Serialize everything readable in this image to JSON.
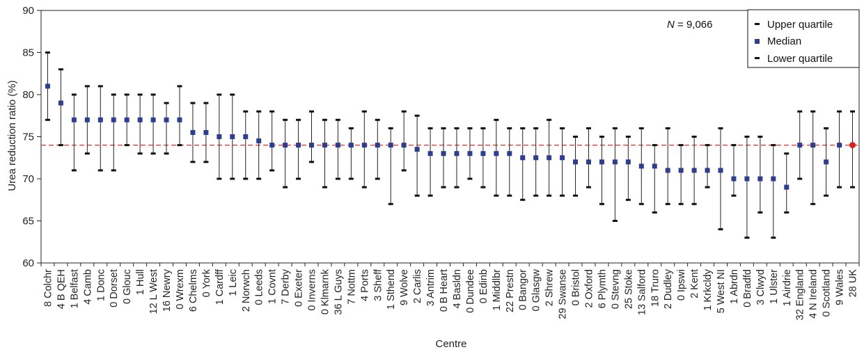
{
  "chart_data": {
    "type": "scatter",
    "xlabel": "Centre",
    "ylabel": "Urea reduction ratio (%)",
    "ylim": [
      60,
      90
    ],
    "yticks": [
      60,
      65,
      70,
      75,
      80,
      85,
      90
    ],
    "grid": false,
    "legend_position": "top-right",
    "annotation": {
      "italic": "N",
      "text": " = 9,066"
    },
    "reference_line": {
      "value": 74,
      "style": "dashed",
      "color": "#e03030"
    },
    "colors": {
      "median": "#2f3d8f",
      "quartile": "#111111",
      "reference": "#e03030",
      "uk": "#e02020"
    },
    "legend": [
      {
        "label": "Upper quartile",
        "marker": "bar"
      },
      {
        "label": "Median",
        "marker": "square"
      },
      {
        "label": "Lower quartile",
        "marker": "bar"
      }
    ],
    "categories": [
      "8 Colchr",
      "4 B QEH",
      "1 Belfast",
      "4 Camb",
      "1 Donc",
      "0 Dorset",
      "0 Glouc",
      "1 Hull",
      "12 L West",
      "16 Newry",
      "0 Wrexm",
      "6 Chelms",
      "0 York",
      "1 Cardff",
      "1 Leic",
      "2 Norwch",
      "0 Leeds",
      "1 Covnt",
      "7 Derby",
      "0 Exeter",
      "0 Inverns",
      "0 Klmarnk",
      "36 L Guys",
      "7 Nottm",
      "4 Ports",
      "3 Sheff",
      "1 Sthend",
      "9 Wolve",
      "2 Carlis",
      "3 Antrim",
      "0 B Heart",
      "4 Basldn",
      "0 Dundee",
      "0 Edinb",
      "1 Middlbr",
      "22 Prestn",
      "0 Bangor",
      "0 Glasgw",
      "2 Shrew",
      "29 Swanse",
      "0 Bristol",
      "2 Oxford",
      "6 Plymth",
      "0 Stevng",
      "25 Stoke",
      "13 Salford",
      "18 Truro",
      "2 Dudley",
      "0 Ipswi",
      "2 Kent",
      "1 Krkcldy",
      "5 West NI",
      "1 Abrdn",
      "0 Bradfd",
      "3 Clwyd",
      "1 Ulster",
      "1 Airdrie",
      "32 England",
      "4 N Ireland",
      "0 Scotland",
      "9 Wales",
      "28 UK"
    ],
    "series": [
      {
        "name": "Upper quartile",
        "values": [
          85,
          83,
          80,
          81,
          81,
          80,
          80,
          80,
          80,
          79,
          81,
          79,
          79,
          80,
          80,
          78,
          78,
          78,
          77,
          77,
          78,
          77,
          77,
          76,
          78,
          77,
          76,
          78,
          77.5,
          76,
          76,
          76,
          76,
          76,
          77,
          76,
          76,
          76,
          77,
          76,
          75,
          76,
          75,
          76,
          75,
          76,
          74,
          76,
          74,
          75,
          74,
          76,
          74,
          75,
          75,
          74,
          73,
          78,
          78,
          76,
          78,
          78
        ]
      },
      {
        "name": "Median",
        "values": [
          81,
          79,
          77,
          77,
          77,
          77,
          77,
          77,
          77,
          77,
          77,
          75.5,
          75.5,
          75,
          75,
          75,
          74.5,
          74,
          74,
          74,
          74,
          74,
          74,
          74,
          74,
          74,
          74,
          74,
          73.5,
          73,
          73,
          73,
          73,
          73,
          73,
          73,
          72.5,
          72.5,
          72.5,
          72.5,
          72,
          72,
          72,
          72,
          72,
          71.5,
          71.5,
          71,
          71,
          71,
          71,
          71,
          70,
          70,
          70,
          70,
          69,
          74,
          74,
          72,
          74,
          74
        ]
      },
      {
        "name": "Lower quartile",
        "values": [
          77,
          74,
          71,
          73,
          71,
          71,
          74,
          73,
          73,
          73,
          74,
          72,
          72,
          70,
          70,
          70,
          70,
          71,
          69,
          70,
          72,
          69,
          70,
          70,
          69,
          70,
          67,
          71,
          68,
          68,
          69,
          69,
          70,
          69,
          68,
          68,
          67.5,
          68,
          68,
          68,
          68,
          69,
          67,
          65,
          67.5,
          67,
          66,
          67,
          67,
          67,
          69,
          64,
          68,
          63,
          66,
          63,
          66,
          70,
          67,
          68,
          69,
          69
        ]
      }
    ]
  }
}
